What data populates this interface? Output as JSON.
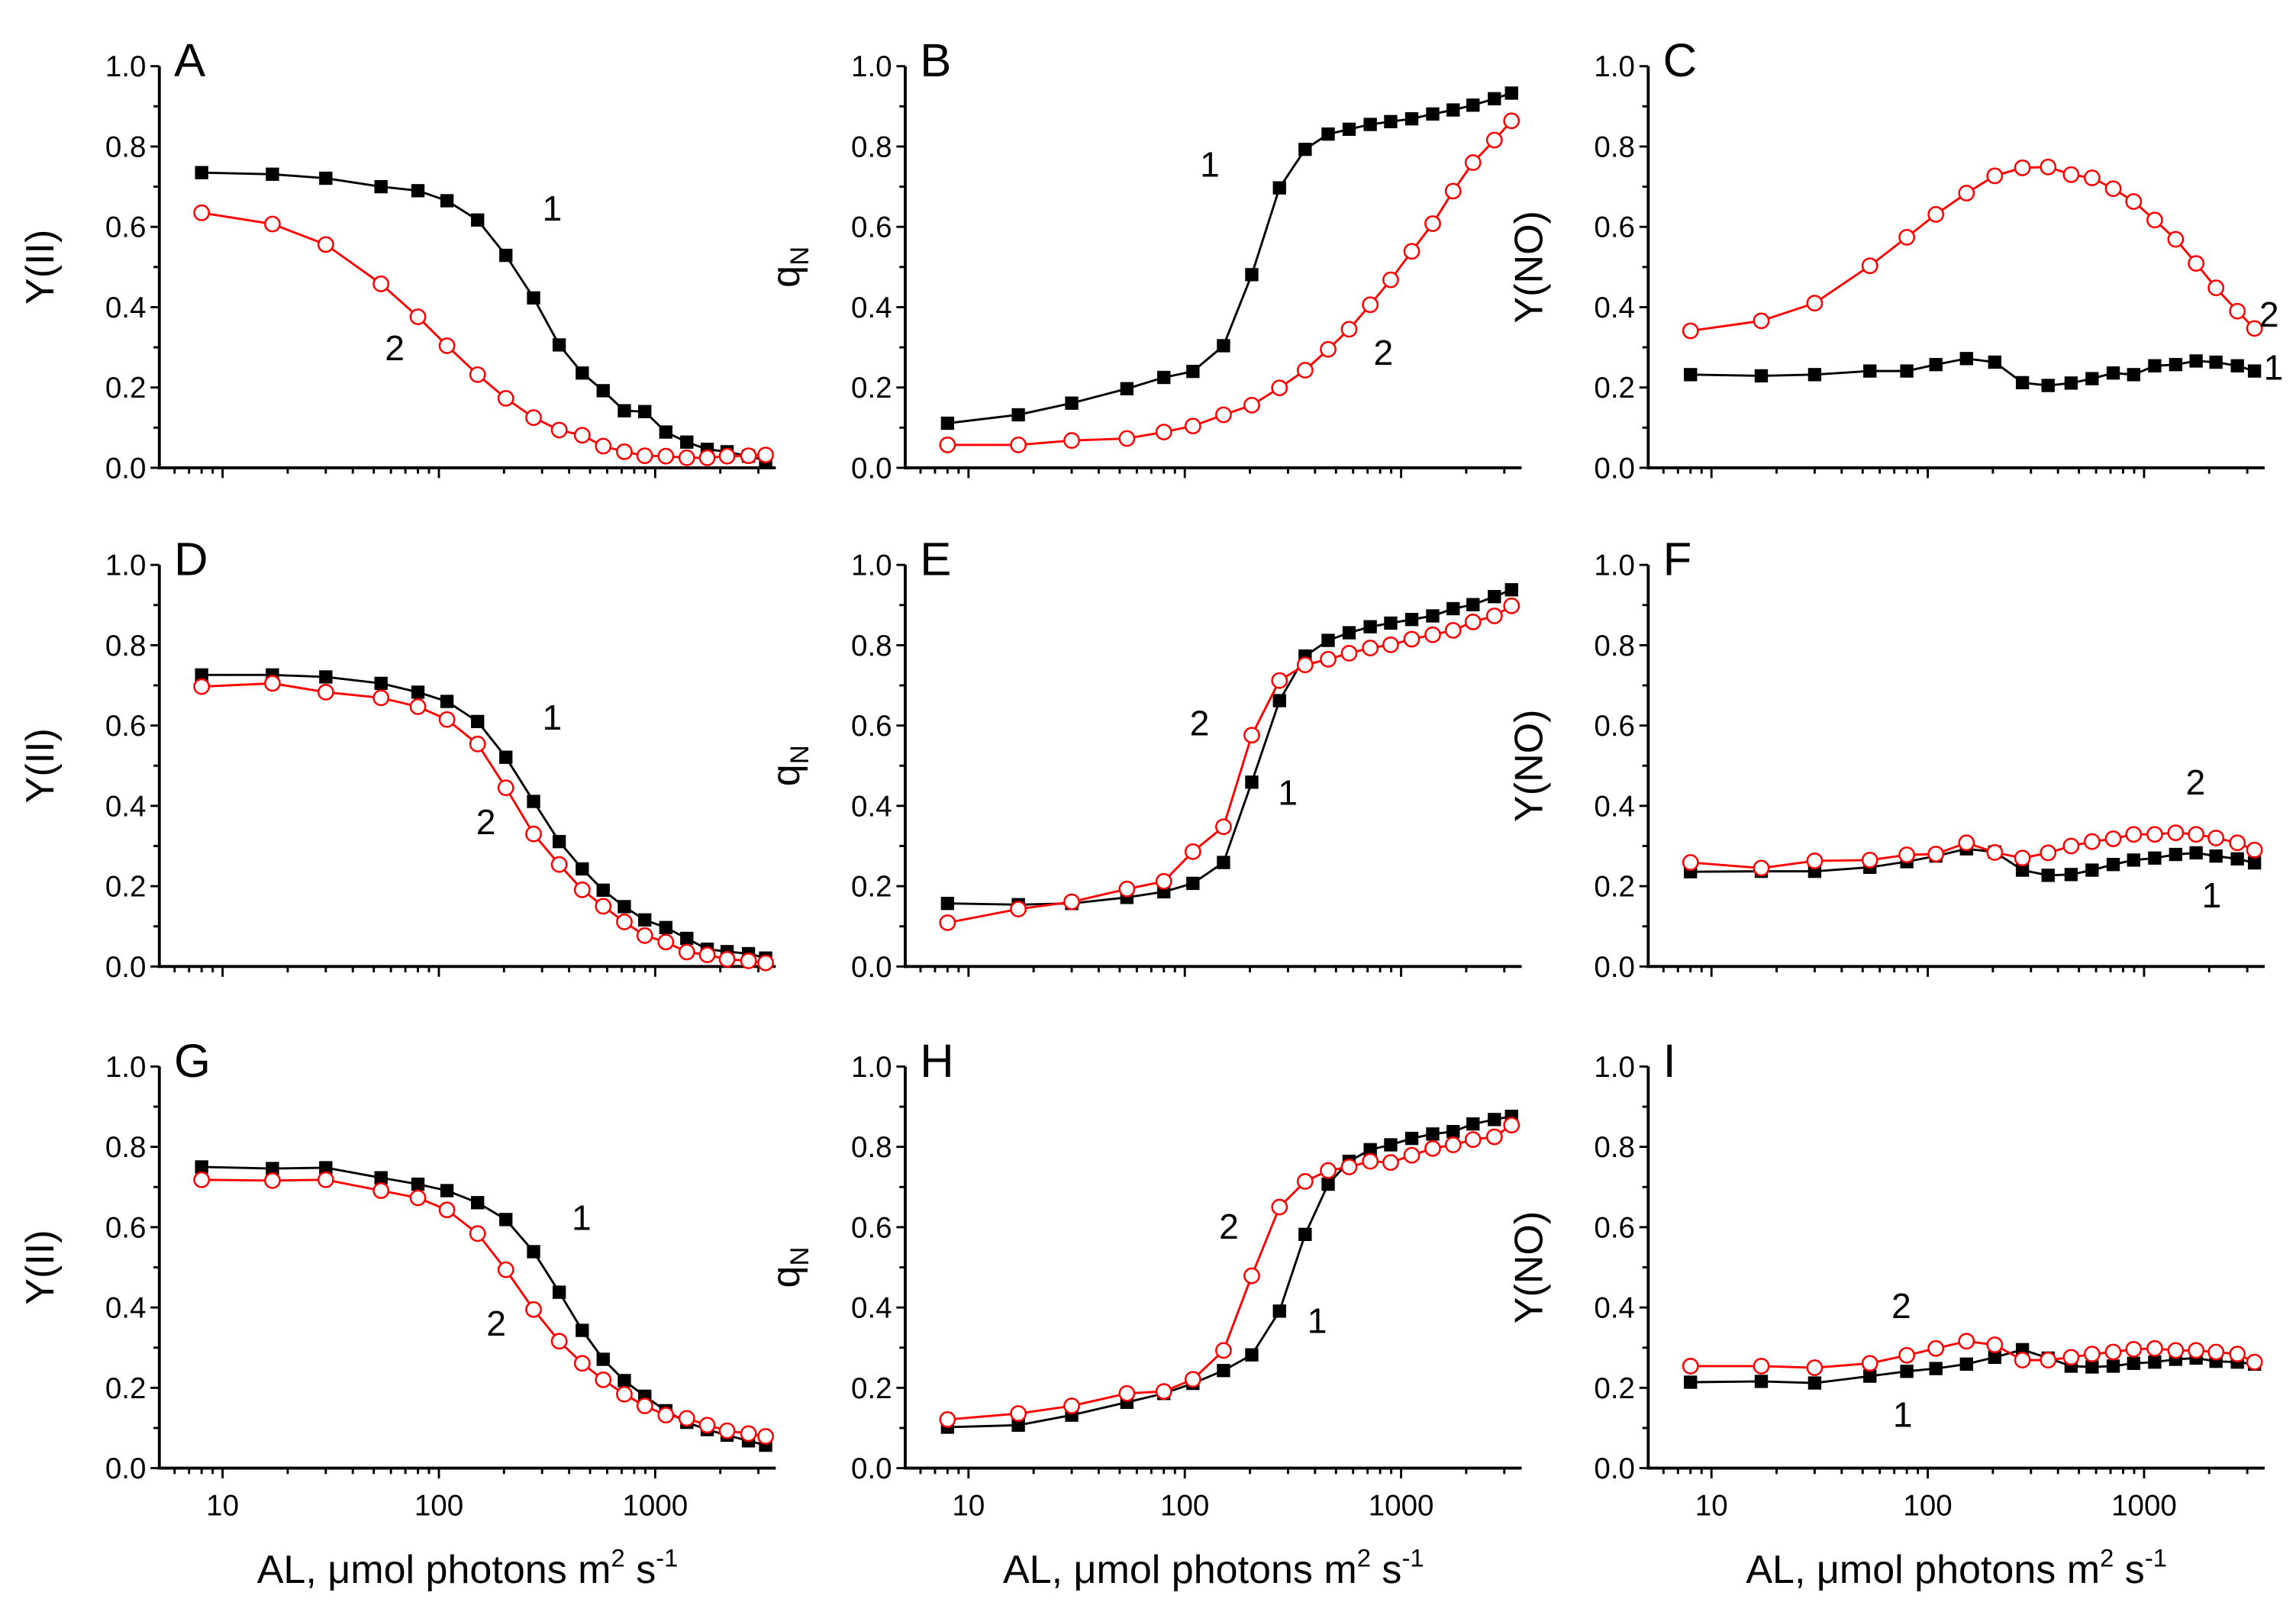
{
  "chart_data": {
    "type": "line",
    "x_scale": "log",
    "xlim": [
      5.1,
      3610
    ],
    "ylim": [
      0,
      1.0
    ],
    "x": [
      8,
      17,
      30,
      54,
      80,
      109,
      151,
      204,
      274,
      360,
      460,
      575,
      720,
      895,
      1120,
      1400,
      1740,
      2150,
      2700,
      3240
    ],
    "x_tick_labels": [
      "10",
      "100",
      "1000"
    ],
    "y_tick_labels": [
      "0.0",
      "0.2",
      "0.4",
      "0.6",
      "0.8",
      "1.0"
    ],
    "xlabel": {
      "main": "AL, μmol photons m",
      "sup1": "2",
      "mid": " s",
      "sup2": "-1"
    },
    "series_names": [
      "1",
      "2"
    ],
    "series_colors": {
      "1": "#000000",
      "2": "#ff0000"
    },
    "panels": [
      {
        "letter": "A",
        "ylabel": "Y(II)",
        "s1": [
          0.735,
          0.731,
          0.721,
          0.7,
          0.69,
          0.665,
          0.617,
          0.529,
          0.423,
          0.306,
          0.236,
          0.192,
          0.142,
          0.14,
          0.089,
          0.064,
          0.046,
          0.04,
          0.029,
          0.018
        ],
        "s2": [
          0.635,
          0.607,
          0.556,
          0.458,
          0.376,
          0.304,
          0.232,
          0.173,
          0.125,
          0.094,
          0.081,
          0.054,
          0.04,
          0.03,
          0.029,
          0.025,
          0.025,
          0.029,
          0.03,
          0.032
        ]
      },
      {
        "letter": "B",
        "ylabel": "q",
        "ylabel_sub": "N",
        "s1": [
          0.111,
          0.132,
          0.161,
          0.197,
          0.225,
          0.24,
          0.304,
          0.481,
          0.697,
          0.793,
          0.831,
          0.843,
          0.855,
          0.862,
          0.869,
          0.881,
          0.891,
          0.903,
          0.919,
          0.933
        ],
        "s2": [
          0.057,
          0.057,
          0.068,
          0.073,
          0.089,
          0.104,
          0.132,
          0.156,
          0.199,
          0.243,
          0.295,
          0.345,
          0.406,
          0.468,
          0.539,
          0.608,
          0.689,
          0.76,
          0.816,
          0.864
        ]
      },
      {
        "letter": "C",
        "ylabel": "Y(NO)",
        "s1": [
          0.232,
          0.229,
          0.232,
          0.241,
          0.241,
          0.257,
          0.272,
          0.263,
          0.212,
          0.205,
          0.211,
          0.222,
          0.236,
          0.232,
          0.254,
          0.257,
          0.266,
          0.263,
          0.254,
          0.241
        ],
        "s2": [
          0.341,
          0.366,
          0.41,
          0.503,
          0.574,
          0.631,
          0.684,
          0.727,
          0.747,
          0.749,
          0.73,
          0.722,
          0.695,
          0.663,
          0.617,
          0.569,
          0.509,
          0.448,
          0.39,
          0.347
        ]
      },
      {
        "letter": "D",
        "ylabel": "Y(II)",
        "s1": [
          0.726,
          0.726,
          0.721,
          0.705,
          0.683,
          0.66,
          0.61,
          0.521,
          0.411,
          0.311,
          0.243,
          0.19,
          0.149,
          0.116,
          0.097,
          0.07,
          0.043,
          0.037,
          0.032,
          0.021
        ],
        "s2": [
          0.697,
          0.705,
          0.683,
          0.669,
          0.647,
          0.615,
          0.554,
          0.445,
          0.33,
          0.254,
          0.191,
          0.15,
          0.111,
          0.077,
          0.061,
          0.036,
          0.029,
          0.018,
          0.014,
          0.009
        ]
      },
      {
        "letter": "E",
        "ylabel": "q",
        "ylabel_sub": "N",
        "s1": [
          0.157,
          0.154,
          0.157,
          0.172,
          0.186,
          0.207,
          0.259,
          0.459,
          0.662,
          0.773,
          0.812,
          0.831,
          0.846,
          0.855,
          0.864,
          0.873,
          0.891,
          0.901,
          0.921,
          0.938
        ],
        "s2": [
          0.109,
          0.143,
          0.161,
          0.193,
          0.212,
          0.286,
          0.348,
          0.576,
          0.712,
          0.751,
          0.765,
          0.78,
          0.793,
          0.801,
          0.815,
          0.826,
          0.837,
          0.858,
          0.873,
          0.898
        ]
      },
      {
        "letter": "F",
        "ylabel": "Y(NO)",
        "s1": [
          0.236,
          0.237,
          0.237,
          0.247,
          0.261,
          0.275,
          0.293,
          0.285,
          0.24,
          0.227,
          0.229,
          0.24,
          0.254,
          0.265,
          0.27,
          0.279,
          0.283,
          0.275,
          0.268,
          0.258
        ],
        "s2": [
          0.259,
          0.245,
          0.263,
          0.265,
          0.278,
          0.28,
          0.308,
          0.284,
          0.27,
          0.283,
          0.3,
          0.311,
          0.318,
          0.329,
          0.329,
          0.333,
          0.329,
          0.32,
          0.308,
          0.29
        ]
      },
      {
        "letter": "G",
        "ylabel": "Y(II)",
        "s1": [
          0.75,
          0.746,
          0.748,
          0.723,
          0.707,
          0.691,
          0.661,
          0.619,
          0.539,
          0.438,
          0.343,
          0.271,
          0.218,
          0.179,
          0.143,
          0.114,
          0.096,
          0.082,
          0.068,
          0.057
        ],
        "s2": [
          0.718,
          0.716,
          0.718,
          0.691,
          0.673,
          0.643,
          0.584,
          0.494,
          0.395,
          0.316,
          0.261,
          0.22,
          0.184,
          0.155,
          0.132,
          0.124,
          0.107,
          0.093,
          0.086,
          0.079
        ]
      },
      {
        "letter": "H",
        "ylabel": "q",
        "ylabel_sub": "N",
        "s1": [
          0.102,
          0.107,
          0.132,
          0.164,
          0.186,
          0.211,
          0.243,
          0.282,
          0.391,
          0.582,
          0.707,
          0.764,
          0.793,
          0.805,
          0.821,
          0.832,
          0.838,
          0.857,
          0.868,
          0.876
        ],
        "s2": [
          0.121,
          0.136,
          0.155,
          0.186,
          0.191,
          0.221,
          0.293,
          0.479,
          0.65,
          0.714,
          0.741,
          0.75,
          0.764,
          0.761,
          0.779,
          0.796,
          0.805,
          0.818,
          0.825,
          0.854
        ]
      },
      {
        "letter": "I",
        "ylabel": "Y(NO)",
        "s1": [
          0.214,
          0.216,
          0.212,
          0.229,
          0.241,
          0.248,
          0.259,
          0.276,
          0.295,
          0.274,
          0.254,
          0.252,
          0.254,
          0.261,
          0.264,
          0.271,
          0.274,
          0.266,
          0.264,
          0.259
        ],
        "s2": [
          0.254,
          0.254,
          0.25,
          0.261,
          0.281,
          0.298,
          0.316,
          0.307,
          0.269,
          0.269,
          0.276,
          0.284,
          0.289,
          0.296,
          0.298,
          0.293,
          0.293,
          0.289,
          0.284,
          0.264
        ]
      }
    ]
  }
}
